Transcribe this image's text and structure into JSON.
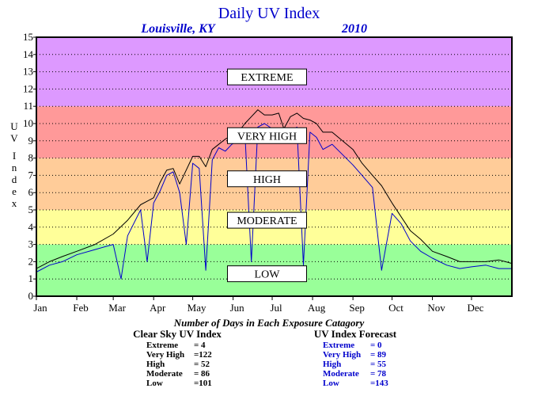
{
  "chart_data": {
    "type": "line",
    "title": "Daily UV Index",
    "subtitle_location": "Louisville, KY",
    "subtitle_year": "2010",
    "ylabel": "UV Index",
    "ylim": [
      0,
      15
    ],
    "yticks": [
      0,
      1,
      2,
      3,
      4,
      5,
      6,
      7,
      8,
      9,
      10,
      11,
      12,
      13,
      14,
      15
    ],
    "x_months": [
      "Jan",
      "Feb",
      "Mar",
      "Apr",
      "May",
      "Jun",
      "Jul",
      "Aug",
      "Sep",
      "Oct",
      "Nov",
      "Dec"
    ],
    "grid": true,
    "bands": [
      {
        "label": "LOW",
        "min": 0,
        "max": 3,
        "color": "#99ff99",
        "label_y": 1.3
      },
      {
        "label": "MODERATE",
        "min": 3,
        "max": 5,
        "color": "#ffff99",
        "label_y": 4.4
      },
      {
        "label": "HIGH",
        "min": 5,
        "max": 8,
        "color": "#ffcc99",
        "label_y": 6.8
      },
      {
        "label": "VERY HIGH",
        "min": 8,
        "max": 11,
        "color": "#ff9999",
        "label_y": 9.3
      },
      {
        "label": "EXTREME",
        "min": 11,
        "max": 15,
        "color": "#dd99ff",
        "label_y": 12.7
      }
    ],
    "series": [
      {
        "name": "Clear Sky UV Index",
        "color": "#000000",
        "x": [
          0,
          10,
          20,
          31,
          45,
          59,
          70,
          80,
          90,
          95,
          100,
          105,
          110,
          120,
          125,
          130,
          135,
          140,
          145,
          150,
          155,
          160,
          165,
          170,
          175,
          181,
          186,
          190,
          195,
          200,
          205,
          210,
          215,
          220,
          227,
          235,
          243,
          250,
          258,
          265,
          273,
          280,
          287,
          295,
          304,
          315,
          325,
          334,
          345,
          355,
          365
        ],
        "y": [
          1.6,
          2.0,
          2.3,
          2.6,
          3.0,
          3.6,
          4.4,
          5.3,
          5.7,
          6.6,
          7.3,
          7.4,
          6.5,
          8.1,
          8.1,
          7.5,
          8.5,
          8.8,
          9.1,
          9.3,
          9.5,
          10.0,
          10.4,
          10.8,
          10.5,
          10.5,
          10.6,
          9.7,
          10.4,
          10.6,
          10.3,
          10.2,
          10.0,
          9.5,
          9.5,
          9.0,
          8.5,
          7.7,
          7.0,
          6.4,
          5.4,
          4.6,
          3.8,
          3.3,
          2.6,
          2.3,
          2.0,
          2.0,
          2.0,
          2.1,
          1.9
        ]
      },
      {
        "name": "UV Index Forecast",
        "color": "#0000cc",
        "x": [
          0,
          10,
          20,
          31,
          45,
          59,
          65,
          70,
          80,
          85,
          90,
          95,
          100,
          105,
          110,
          115,
          120,
          125,
          130,
          135,
          140,
          145,
          150,
          155,
          160,
          165,
          170,
          175,
          181,
          186,
          190,
          195,
          200,
          205,
          210,
          215,
          220,
          227,
          235,
          243,
          250,
          258,
          265,
          273,
          280,
          287,
          295,
          304,
          315,
          325,
          334,
          345,
          355,
          365
        ],
        "y": [
          1.4,
          1.8,
          2.0,
          2.4,
          2.7,
          3.0,
          1.0,
          3.5,
          5.0,
          2.0,
          5.4,
          6.1,
          7.0,
          7.2,
          6.0,
          3.0,
          7.7,
          7.4,
          1.5,
          7.9,
          8.6,
          8.4,
          8.8,
          9.0,
          9.5,
          2.0,
          9.8,
          10.0,
          9.7,
          9.6,
          9.0,
          9.5,
          9.8,
          1.8,
          9.5,
          9.2,
          8.5,
          8.8,
          8.2,
          7.6,
          7.0,
          6.3,
          1.5,
          4.8,
          4.2,
          3.2,
          2.6,
          2.2,
          1.8,
          1.6,
          1.7,
          1.8,
          1.6,
          1.6
        ]
      }
    ]
  },
  "caption": "Number of Days in Each Exposure Catagory",
  "stats": {
    "clear": {
      "heading": "Clear Sky UV Index",
      "color": "#000000",
      "rows": [
        {
          "label": "Extreme",
          "value": "= 4"
        },
        {
          "label": "Very High",
          "value": "=122"
        },
        {
          "label": "High",
          "value": "= 52"
        },
        {
          "label": "Moderate",
          "value": "= 86"
        },
        {
          "label": "Low",
          "value": "=101"
        }
      ]
    },
    "forecast": {
      "heading": "UV Index Forecast",
      "color": "#0000cc",
      "rows": [
        {
          "label": "Extreme",
          "value": "= 0"
        },
        {
          "label": "Very High",
          "value": "= 89"
        },
        {
          "label": "High",
          "value": "= 55"
        },
        {
          "label": "Moderate",
          "value": "= 78"
        },
        {
          "label": "Low",
          "value": "=143"
        }
      ]
    }
  }
}
